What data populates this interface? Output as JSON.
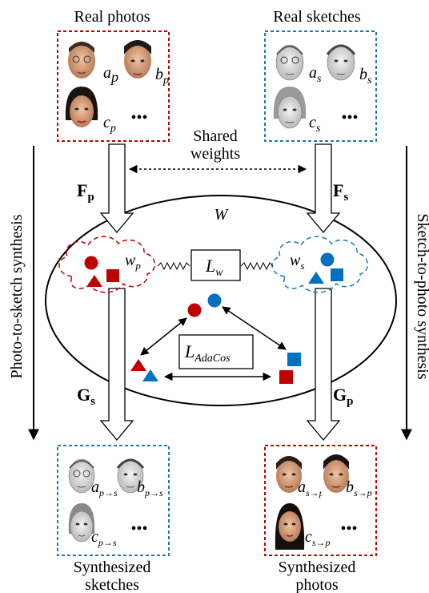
{
  "panels": {
    "real_photos": {
      "title": "Real photos",
      "labels": [
        {
          "base": "a",
          "sub": "p"
        },
        {
          "base": "b",
          "sub": "p"
        },
        {
          "base": "c",
          "sub": "p"
        }
      ]
    },
    "real_sketches": {
      "title": "Real sketches",
      "labels": [
        {
          "base": "a",
          "sub": "s"
        },
        {
          "base": "b",
          "sub": "s"
        },
        {
          "base": "c",
          "sub": "s"
        }
      ]
    },
    "synth_sketches": {
      "title_line1": "Synthesized",
      "title_line2": "sketches",
      "labels": [
        {
          "base": "a",
          "sub": "p→s"
        },
        {
          "base": "b",
          "sub": "p→s"
        },
        {
          "base": "c",
          "sub": "p→s"
        }
      ]
    },
    "synth_photos": {
      "title_line1": "Synthesized",
      "title_line2": "photos",
      "labels": [
        {
          "base": "a",
          "sub": "s→p"
        },
        {
          "base": "b",
          "sub": "s→p"
        },
        {
          "base": "c",
          "sub": "s→p"
        }
      ]
    }
  },
  "ellipsis": "•••",
  "shared_weights_line1": "Shared",
  "shared_weights_line2": "weights",
  "encoders": {
    "photo": {
      "base": "F",
      "sub": "p"
    },
    "sketch": {
      "base": "F",
      "sub": "s"
    }
  },
  "decoders": {
    "sketch": {
      "base": "G",
      "sub": "s"
    },
    "photo": {
      "base": "G",
      "sub": "p"
    }
  },
  "latent_space": "W",
  "cloud_photo": {
    "base": "w",
    "sub": "p"
  },
  "cloud_sketch": {
    "base": "w",
    "sub": "s"
  },
  "loss_w": {
    "base": "L",
    "sub": "w"
  },
  "loss_adacos": {
    "base": "L",
    "sub": "AdaCos"
  },
  "side_left": "Photo-to-sketch synthesis",
  "side_right": "Sketch-to-photo synthesis",
  "colors": {
    "photo_red": "#c00000",
    "sketch_blue": "#0070c0",
    "photo_border": "#c00000",
    "sketch_border": "#1f78b4"
  }
}
